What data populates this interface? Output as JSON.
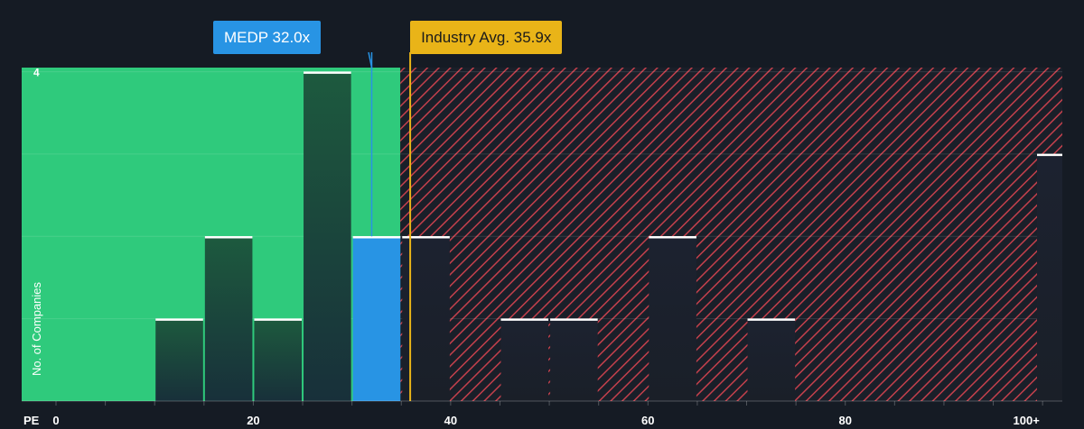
{
  "chart_data": {
    "type": "bar",
    "title": "",
    "xlabel": "PE",
    "ylabel": "No. of Companies",
    "x_ticks": [
      "0",
      "20",
      "40",
      "60",
      "80",
      "100+"
    ],
    "y_ticks": [
      "4"
    ],
    "xlim": [
      0,
      102
    ],
    "ylim": [
      0,
      4.05
    ],
    "bin_width": 5,
    "bars": [
      {
        "bin_start": 10,
        "value": 1
      },
      {
        "bin_start": 15,
        "value": 2
      },
      {
        "bin_start": 20,
        "value": 1
      },
      {
        "bin_start": 25,
        "value": 4
      },
      {
        "bin_start": 30,
        "value": 2,
        "highlight": true
      },
      {
        "bin_start": 35,
        "value": 2
      },
      {
        "bin_start": 45,
        "value": 1
      },
      {
        "bin_start": 50,
        "value": 1
      },
      {
        "bin_start": 60,
        "value": 2
      },
      {
        "bin_start": 70,
        "value": 1
      },
      {
        "bin_start": 100,
        "value": 3
      }
    ],
    "undervalued_zone_end": 34.9,
    "company": {
      "label": "MEDP 32.0x",
      "value": 32.0
    },
    "industry_avg": {
      "label": "Industry Avg. 35.9x",
      "value": 35.9
    },
    "grid": true,
    "colors": {
      "background": "#151b24",
      "good_zone": "#2fca7c",
      "bad_zone_hatch": "#c4404c",
      "bar_dark": "#1a2028",
      "company_bar": "#2894e4",
      "industry_line": "#e9b418",
      "text": "#ffffff"
    }
  }
}
